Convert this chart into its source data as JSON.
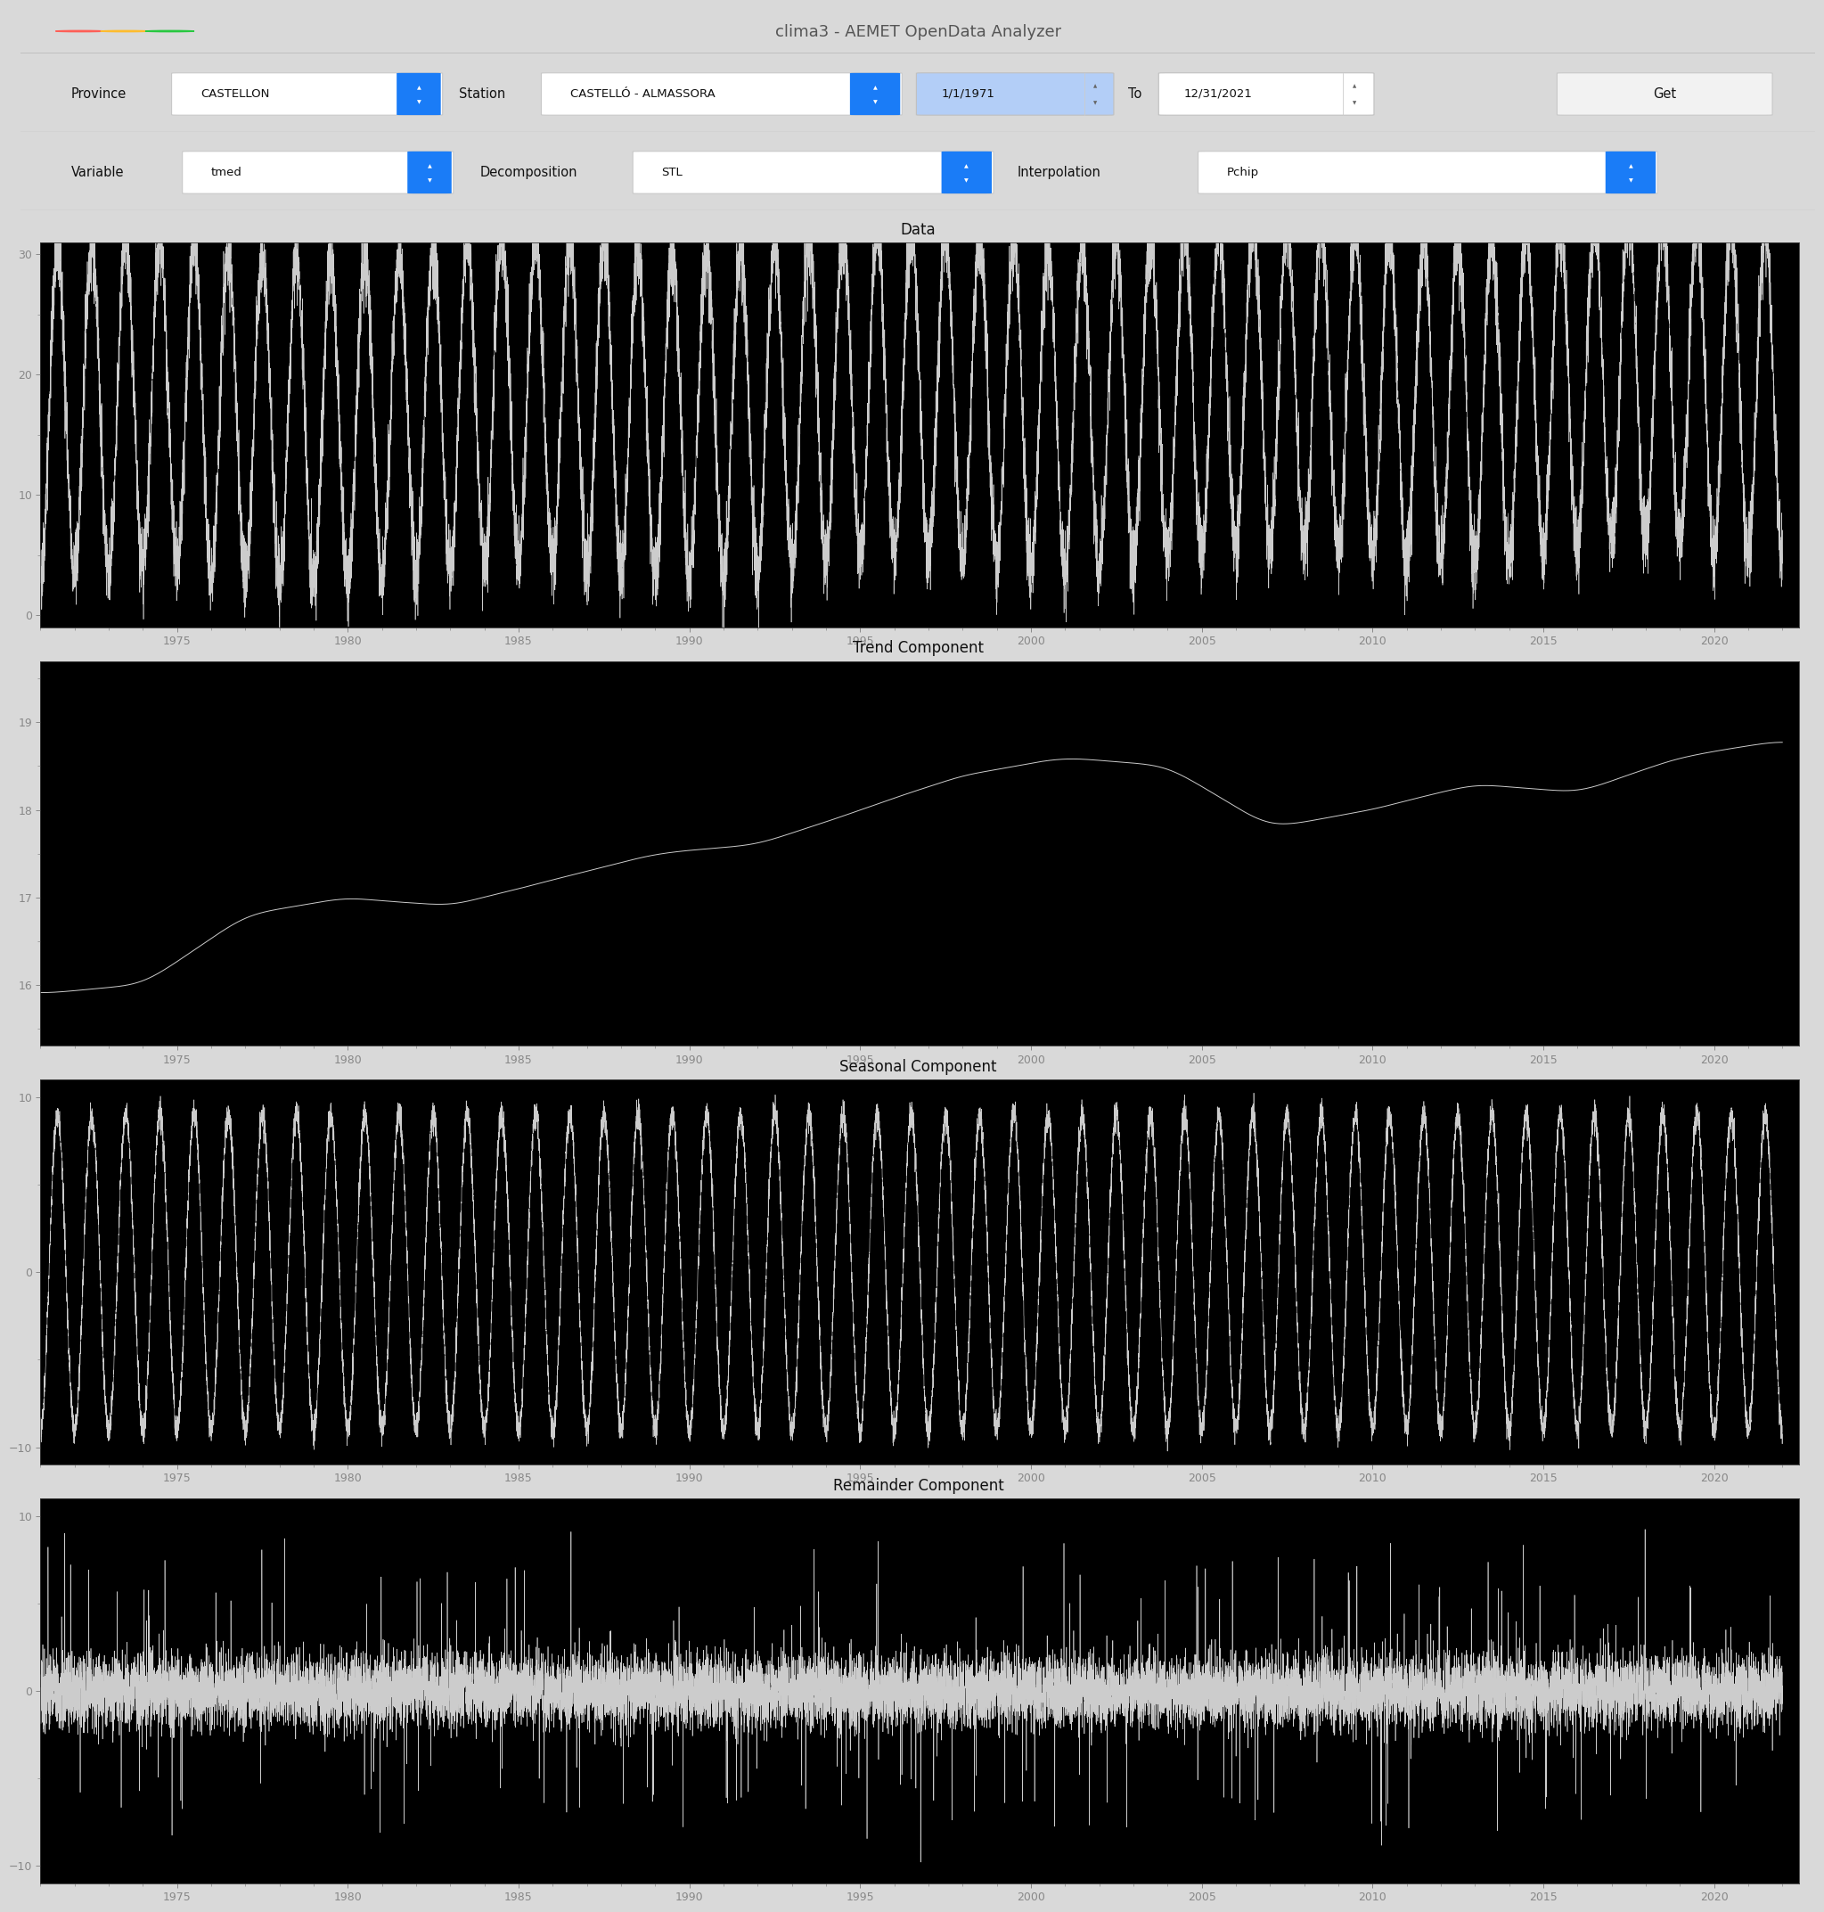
{
  "title_bar": "clima3 - AEMET OpenData Analyzer",
  "title_bar_bg": "#ececec",
  "window_bg": "#d9d9d9",
  "content_bg": "#d9d9d9",
  "plot_bg": "#000000",
  "plot_line_color": "#cccccc",
  "plot_titles": [
    "Data",
    "Trend Component",
    "Seasonal Component",
    "Remainder Component"
  ],
  "data_ylim": [
    -1,
    31
  ],
  "data_yticks": [
    0,
    10,
    20,
    30
  ],
  "trend_ylim": [
    15.3,
    19.7
  ],
  "trend_yticks": [
    16,
    17,
    18,
    19
  ],
  "seasonal_ylim": [
    -11,
    11
  ],
  "seasonal_yticks": [
    -10,
    0,
    10
  ],
  "remainder_ylim": [
    -11,
    11
  ],
  "remainder_yticks": [
    -10,
    0,
    10
  ],
  "xlim_start": 1971.0,
  "xlim_end": 2022.5,
  "xticks": [
    1975,
    1980,
    1985,
    1990,
    1995,
    2000,
    2005,
    2010,
    2015,
    2020
  ],
  "ui_labels": {
    "province_label": "Province",
    "province_value": "CASTELLON",
    "station_label": "Station",
    "station_value": "CASTELLÓ - ALMASSORA",
    "from_value": "1/1/1971",
    "to_label": "To",
    "to_value": "12/31/2021",
    "get_label": "Get",
    "variable_label": "Variable",
    "variable_value": "tmed",
    "decomp_label": "Decomposition",
    "decomp_value": "STL",
    "interp_label": "Interpolation",
    "interp_value": "Pchip"
  },
  "traffic_light_colors": [
    "#ff5f57",
    "#febc2e",
    "#28c840"
  ],
  "separator_color": "#bbbbbb",
  "tick_label_color": "#888888",
  "title_text_color": "#555555",
  "ui_text_color": "#111111",
  "arrow_blue": "#1a7cf7",
  "spinbox_selected_bg": "#b3cef7"
}
